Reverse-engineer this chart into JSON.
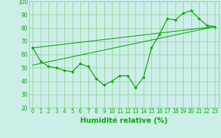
{
  "xlabel": "Humidité relative (%)",
  "xlim": [
    -0.5,
    23.5
  ],
  "ylim": [
    20,
    100
  ],
  "xticks": [
    0,
    1,
    2,
    3,
    4,
    5,
    6,
    7,
    8,
    9,
    10,
    11,
    12,
    13,
    14,
    15,
    16,
    17,
    18,
    19,
    20,
    21,
    22,
    23
  ],
  "yticks": [
    20,
    30,
    40,
    50,
    60,
    70,
    80,
    90,
    100
  ],
  "bg_color": "#cceee8",
  "grid_color": "#88cc88",
  "line_color": "#00aa00",
  "line1_x": [
    0,
    1,
    2,
    3,
    4,
    5,
    6,
    7,
    8,
    9,
    10,
    11,
    12,
    13,
    14,
    15,
    16,
    17,
    18,
    19,
    20,
    21,
    22,
    23
  ],
  "line1_y": [
    65,
    55,
    51,
    50,
    48,
    47,
    53,
    51,
    42,
    37,
    40,
    44,
    44,
    35,
    43,
    65,
    75,
    87,
    86,
    91,
    93,
    87,
    82,
    81
  ],
  "line2_x": [
    0,
    23
  ],
  "line2_y": [
    52,
    81
  ],
  "line3_x": [
    0,
    23
  ],
  "line3_y": [
    65,
    81
  ],
  "font_color": "#00aa00",
  "tick_fontsize": 5.5,
  "label_fontsize": 7.5
}
